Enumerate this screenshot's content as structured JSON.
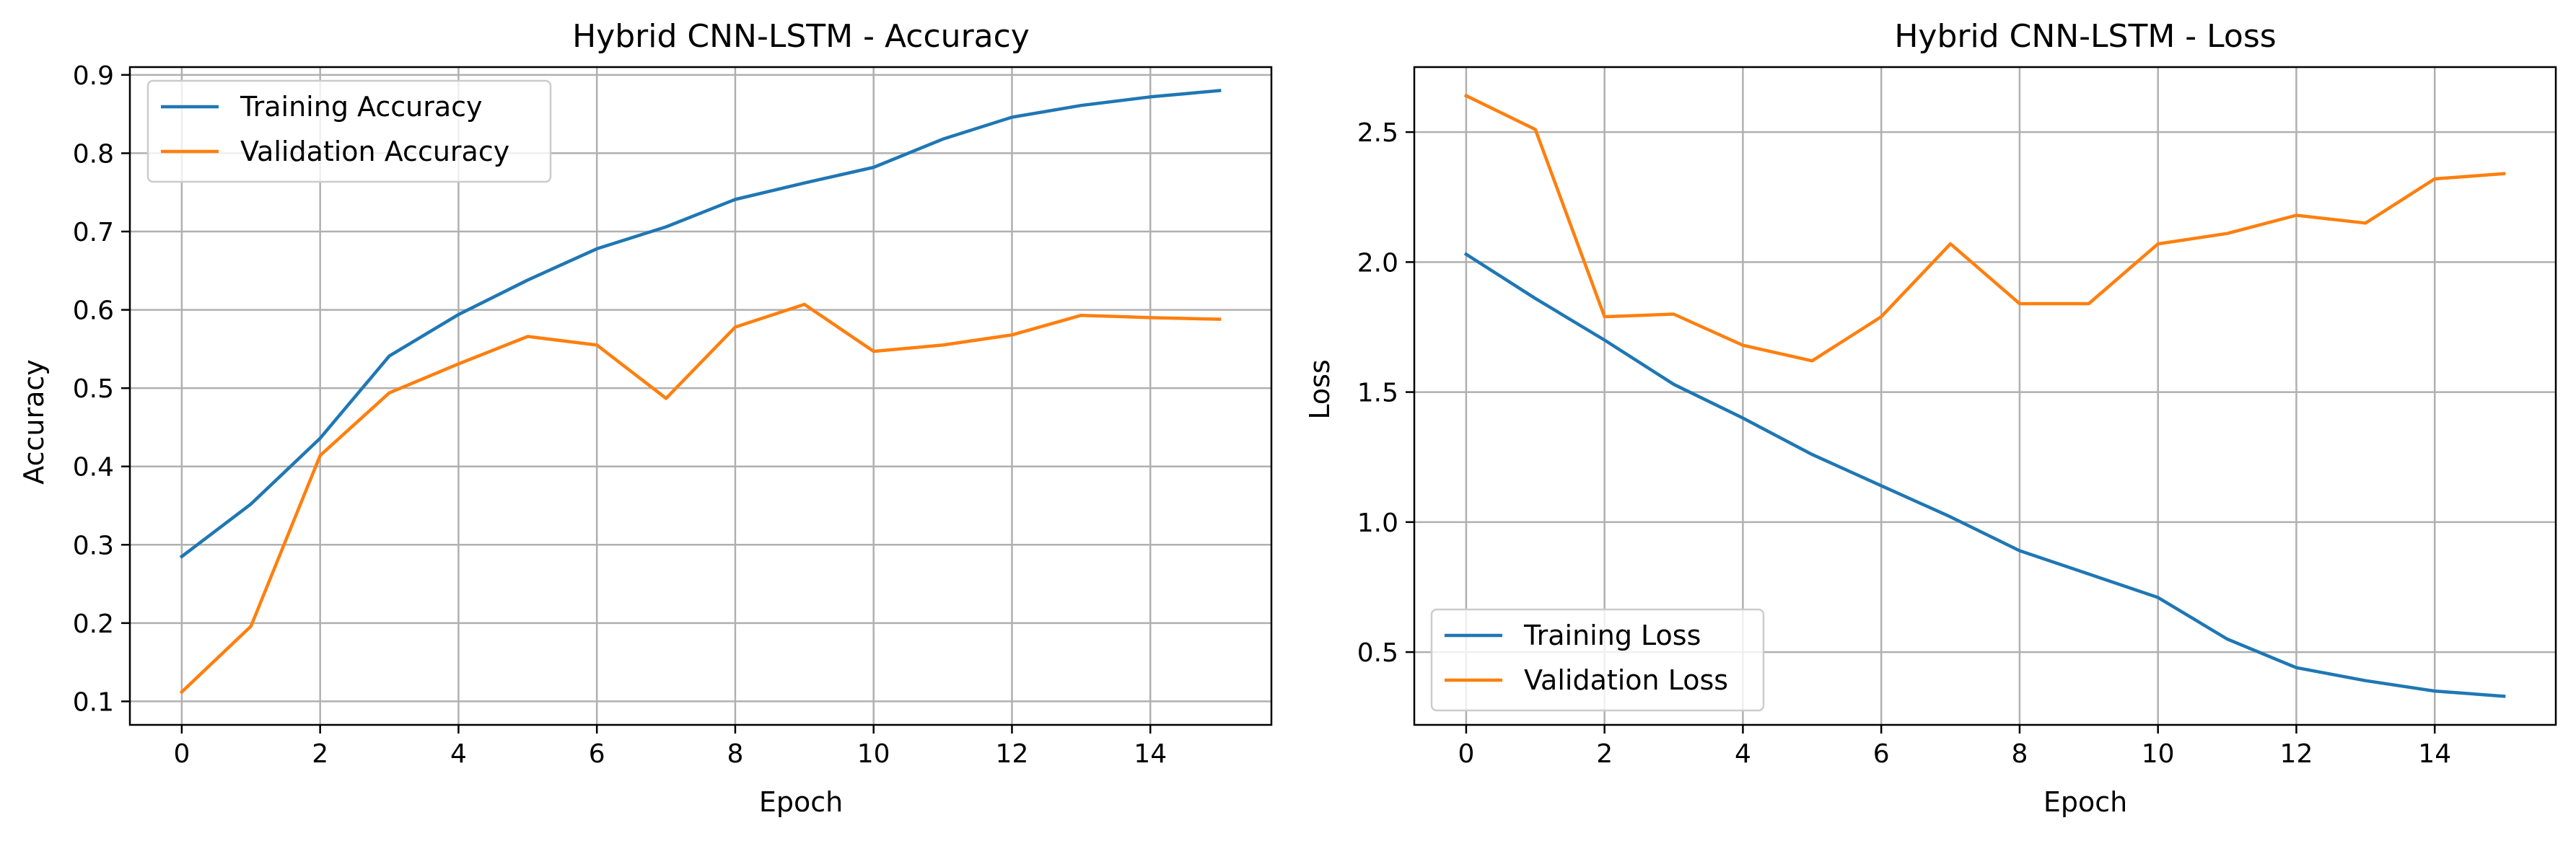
{
  "chart_data": [
    {
      "type": "line",
      "title": "Hybrid CNN-LSTM - Accuracy",
      "xlabel": "Epoch",
      "ylabel": "Accuracy",
      "xlim": [
        -0.75,
        15.75
      ],
      "ylim": [
        0.07,
        0.91
      ],
      "xticks": [
        0,
        2,
        4,
        6,
        8,
        10,
        12,
        14
      ],
      "yticks": [
        0.1,
        0.2,
        0.3,
        0.4,
        0.5,
        0.6,
        0.7,
        0.8,
        0.9
      ],
      "ytick_labels": [
        "0.1",
        "0.2",
        "0.3",
        "0.4",
        "0.5",
        "0.6",
        "0.7",
        "0.8",
        "0.9"
      ],
      "grid": true,
      "legend_position": "top-left",
      "x": [
        0,
        1,
        2,
        3,
        4,
        5,
        6,
        7,
        8,
        9,
        10,
        11,
        12,
        13,
        14,
        15
      ],
      "series": [
        {
          "name": "Training Accuracy",
          "color": "#1f77b4",
          "values": [
            0.285,
            0.352,
            0.436,
            0.541,
            0.594,
            0.638,
            0.678,
            0.706,
            0.741,
            0.762,
            0.782,
            0.818,
            0.846,
            0.861,
            0.872,
            0.88
          ]
        },
        {
          "name": "Validation Accuracy",
          "color": "#ff7f0e",
          "values": [
            0.112,
            0.196,
            0.414,
            0.494,
            0.531,
            0.566,
            0.555,
            0.487,
            0.578,
            0.607,
            0.547,
            0.555,
            0.568,
            0.593,
            0.59,
            0.588
          ]
        }
      ]
    },
    {
      "type": "line",
      "title": "Hybrid CNN-LSTM - Loss",
      "xlabel": "Epoch",
      "ylabel": "Loss",
      "xlim": [
        -0.75,
        15.75
      ],
      "ylim": [
        0.22,
        2.75
      ],
      "xticks": [
        0,
        2,
        4,
        6,
        8,
        10,
        12,
        14
      ],
      "yticks": [
        0.5,
        1.0,
        1.5,
        2.0,
        2.5
      ],
      "ytick_labels": [
        "0.5",
        "1.0",
        "1.5",
        "2.0",
        "2.5"
      ],
      "grid": true,
      "legend_position": "bottom-left",
      "x": [
        0,
        1,
        2,
        3,
        4,
        5,
        6,
        7,
        8,
        9,
        10,
        11,
        12,
        13,
        14,
        15
      ],
      "series": [
        {
          "name": "Training Loss",
          "color": "#1f77b4",
          "values": [
            2.03,
            1.86,
            1.7,
            1.53,
            1.4,
            1.26,
            1.14,
            1.02,
            0.89,
            0.8,
            0.71,
            0.55,
            0.44,
            0.39,
            0.35,
            0.33
          ]
        },
        {
          "name": "Validation Loss",
          "color": "#ff7f0e",
          "values": [
            2.64,
            2.51,
            1.79,
            1.8,
            1.68,
            1.62,
            1.79,
            2.07,
            1.84,
            1.84,
            2.07,
            2.11,
            2.18,
            2.15,
            2.32,
            2.34
          ]
        }
      ]
    }
  ]
}
